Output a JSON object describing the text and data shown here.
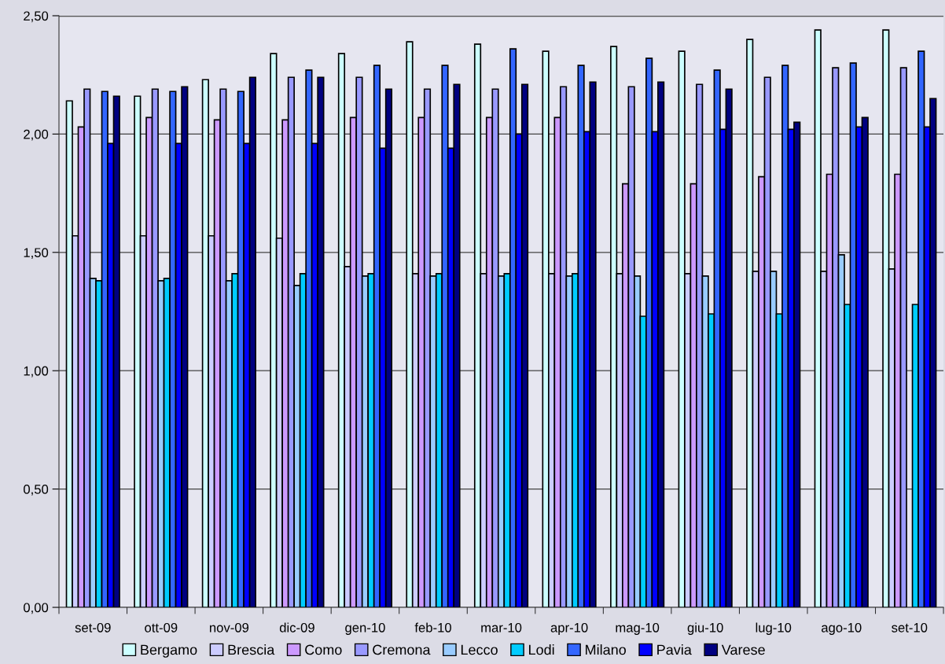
{
  "chart_data": {
    "type": "bar",
    "categories": [
      "set-09",
      "ott-09",
      "nov-09",
      "dic-09",
      "gen-10",
      "feb-10",
      "mar-10",
      "apr-10",
      "mag-10",
      "giu-10",
      "lug-10",
      "ago-10",
      "set-10"
    ],
    "series": [
      {
        "name": "Bergamo",
        "color": "#ccffff",
        "values": [
          2.14,
          2.16,
          2.23,
          2.34,
          2.34,
          2.39,
          2.38,
          2.35,
          2.37,
          2.35,
          2.4,
          2.44,
          2.44
        ]
      },
      {
        "name": "Brescia",
        "color": "#ccccff",
        "values": [
          1.57,
          1.57,
          1.57,
          1.56,
          1.44,
          1.41,
          1.41,
          1.41,
          1.41,
          1.41,
          1.42,
          1.42,
          1.43
        ]
      },
      {
        "name": "Como",
        "color": "#cc99ff",
        "values": [
          2.03,
          2.07,
          2.06,
          2.06,
          2.07,
          2.07,
          2.07,
          2.07,
          1.79,
          1.79,
          1.82,
          1.83,
          1.83
        ]
      },
      {
        "name": "Cremona",
        "color": "#9999ff",
        "values": [
          2.19,
          2.19,
          2.19,
          2.24,
          2.24,
          2.19,
          2.19,
          2.2,
          2.2,
          2.21,
          2.24,
          2.28,
          2.28
        ]
      },
      {
        "name": "Lecco",
        "color": "#99ccff",
        "values": [
          1.39,
          1.38,
          1.38,
          1.36,
          1.4,
          1.4,
          1.4,
          1.4,
          1.4,
          1.4,
          1.42,
          1.49,
          null
        ]
      },
      {
        "name": "Lodi",
        "color": "#00ccff",
        "values": [
          1.38,
          1.39,
          1.41,
          1.41,
          1.41,
          1.41,
          1.41,
          1.41,
          1.23,
          1.24,
          1.24,
          1.28,
          1.28
        ]
      },
      {
        "name": "Milano",
        "color": "#3366ff",
        "values": [
          2.18,
          2.18,
          2.18,
          2.27,
          2.29,
          2.29,
          2.36,
          2.29,
          2.32,
          2.27,
          2.29,
          2.3,
          2.35
        ]
      },
      {
        "name": "Pavia",
        "color": "#0000ff",
        "values": [
          1.96,
          1.96,
          1.96,
          1.96,
          1.94,
          1.94,
          2.0,
          2.01,
          2.01,
          2.02,
          2.02,
          2.03,
          2.03
        ]
      },
      {
        "name": "Varese",
        "color": "#000080",
        "values": [
          2.16,
          2.2,
          2.24,
          2.24,
          2.19,
          2.21,
          2.21,
          2.22,
          2.22,
          2.19,
          2.05,
          2.07,
          2.15
        ]
      }
    ],
    "ylim": [
      0,
      2.5
    ],
    "yticks": [
      {
        "value": 0,
        "label": "0,00"
      },
      {
        "value": 0.5,
        "label": "0,50"
      },
      {
        "value": 1,
        "label": "1,00"
      },
      {
        "value": 1.5,
        "label": "1,50"
      },
      {
        "value": 2,
        "label": "2,00"
      },
      {
        "value": 2.5,
        "label": "2,50"
      }
    ],
    "grid": "y",
    "legend": "bottom"
  }
}
